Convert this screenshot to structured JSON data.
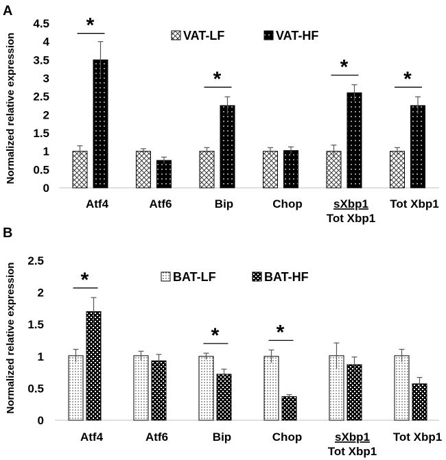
{
  "chart_data": [
    {
      "type": "bar",
      "panel_label": "A",
      "ylabel": "Normalized relative expression",
      "ylim": [
        0,
        4.5
      ],
      "yticks": [
        "0",
        "0.5",
        "1",
        "1.5",
        "2",
        "2.5",
        "3",
        "3.5",
        "4",
        "4.5"
      ],
      "categories": [
        {
          "line1": "Atf4",
          "line2": ""
        },
        {
          "line1": "Atf6",
          "line2": ""
        },
        {
          "line1": "Bip",
          "line2": ""
        },
        {
          "line1": "Chop",
          "line2": ""
        },
        {
          "line1": "sXbp1",
          "line2": "Tot Xbp1"
        },
        {
          "line1": "Tot Xbp1",
          "line2": ""
        }
      ],
      "series": [
        {
          "name": "VAT-LF",
          "values": [
            1.0,
            1.0,
            1.0,
            1.0,
            1.0,
            1.0
          ],
          "errors": [
            0.15,
            0.07,
            0.1,
            0.1,
            0.17,
            0.1
          ]
        },
        {
          "name": "VAT-HF",
          "values": [
            3.5,
            0.75,
            2.25,
            1.02,
            2.6,
            2.25
          ],
          "errors": [
            0.5,
            0.09,
            0.24,
            0.1,
            0.22,
            0.24
          ]
        }
      ],
      "significance": [
        true,
        false,
        true,
        false,
        true,
        true
      ],
      "significance_symbol": "*",
      "legend_position": "top"
    },
    {
      "type": "bar",
      "panel_label": "B",
      "ylabel": "Normalized relative expression",
      "ylim": [
        0,
        2.5
      ],
      "yticks": [
        "0",
        "0.5",
        "1",
        "1.5",
        "2",
        "2.5"
      ],
      "categories": [
        {
          "line1": "Atf4",
          "line2": ""
        },
        {
          "line1": "Atf6",
          "line2": ""
        },
        {
          "line1": "Bip",
          "line2": ""
        },
        {
          "line1": "Chop",
          "line2": ""
        },
        {
          "line1": "sXbp1",
          "line2": "Tot Xbp1"
        },
        {
          "line1": "Tot Xbp1",
          "line2": ""
        }
      ],
      "series": [
        {
          "name": "BAT-LF",
          "values": [
            1.01,
            1.01,
            1.0,
            1.0,
            1.01,
            1.01
          ],
          "errors": [
            0.1,
            0.07,
            0.05,
            0.1,
            0.2,
            0.1
          ]
        },
        {
          "name": "BAT-HF",
          "values": [
            1.7,
            0.93,
            0.72,
            0.37,
            0.87,
            0.57
          ],
          "errors": [
            0.22,
            0.1,
            0.08,
            0.03,
            0.12,
            0.1
          ]
        }
      ],
      "significance": [
        true,
        false,
        true,
        true,
        false,
        false
      ],
      "significance_symbol": "*",
      "legend_position": "top"
    }
  ]
}
